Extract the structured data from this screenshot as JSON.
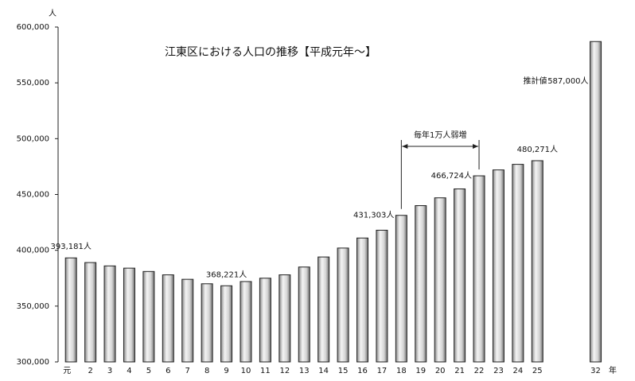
{
  "chart_data": {
    "type": "bar",
    "title": "江東区における人口の推移【平成元年～】",
    "y_unit": "人",
    "x_unit": "年",
    "categories": [
      "元",
      "2",
      "3",
      "4",
      "5",
      "6",
      "7",
      "8",
      "9",
      "10",
      "11",
      "12",
      "13",
      "14",
      "15",
      "16",
      "17",
      "18",
      "19",
      "20",
      "21",
      "22",
      "23",
      "24",
      "25",
      null,
      null,
      "32"
    ],
    "values": [
      393181,
      389000,
      386000,
      384000,
      381000,
      378000,
      374000,
      370000,
      368221,
      372000,
      375000,
      378000,
      385000,
      394000,
      402000,
      411000,
      418000,
      431303,
      440000,
      447000,
      455000,
      466724,
      472000,
      477000,
      480271,
      null,
      null,
      587000
    ],
    "value_labels": [
      "393,181人",
      null,
      null,
      null,
      null,
      null,
      null,
      null,
      "368,221人",
      null,
      null,
      null,
      null,
      null,
      null,
      null,
      null,
      "431,303人",
      null,
      null,
      null,
      "466,724人",
      null,
      null,
      "480,271人",
      null,
      null,
      "587,000人"
    ],
    "estimate_label": "推計値",
    "annotation": "毎年1万人弱増",
    "color": "#d4d4d4",
    "ylim": [
      300000,
      600000
    ],
    "yticks": [
      {
        "value": 300000,
        "label": "300,000"
      },
      {
        "value": 350000,
        "label": "350,000"
      },
      {
        "value": 400000,
        "label": "400,000"
      },
      {
        "value": 450000,
        "label": "450,000"
      },
      {
        "value": 500000,
        "label": "500,000"
      },
      {
        "value": 550000,
        "label": "550,000"
      },
      {
        "value": 600000,
        "label": "600,000"
      }
    ],
    "grid": false
  }
}
